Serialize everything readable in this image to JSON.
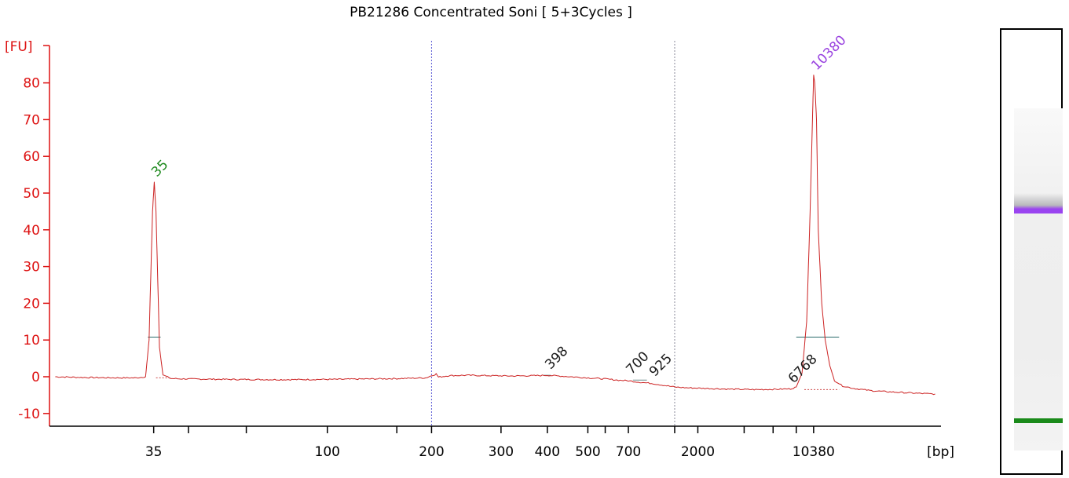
{
  "chart_data": {
    "type": "line",
    "title": "PB21286 Concentrated Soni  [ 5+3Cycles ]",
    "ylabel": "[FU]",
    "xlabel": "[bp]",
    "ylim": [
      -13,
      88
    ],
    "y_ticks": [
      80,
      70,
      60,
      50,
      40,
      30,
      20,
      10,
      0,
      -10
    ],
    "x_scale": "ladder (sizes in bp)",
    "x_tick_labels": [
      "35",
      "100",
      "200",
      "300",
      "400",
      "500",
      "700",
      "2000",
      "10380"
    ],
    "x_label_positions_s": [
      39,
      54,
      63,
      69,
      73,
      76.5,
      80,
      86,
      96
    ],
    "x_ticks_s": [
      39,
      42,
      47,
      54,
      60,
      63,
      69,
      73,
      76.5,
      78,
      80,
      84,
      86,
      90,
      92.5,
      94.5,
      96
    ],
    "dashed_lines": [
      {
        "s": 63,
        "color": "#5b5bd6"
      },
      {
        "s": 84,
        "color": "#8a8a9a"
      }
    ],
    "series": [
      {
        "color": "#cc2222",
        "points_s": [
          [
            30.5,
            0
          ],
          [
            33,
            -0.2
          ],
          [
            36,
            -0.3
          ],
          [
            37.5,
            -0.3
          ],
          [
            38.3,
            0
          ],
          [
            38.6,
            10
          ],
          [
            38.9,
            45
          ],
          [
            39.05,
            53
          ],
          [
            39.2,
            45
          ],
          [
            39.5,
            8
          ],
          [
            39.8,
            0.5
          ],
          [
            40.5,
            -0.5
          ],
          [
            42,
            -0.6
          ],
          [
            45,
            -0.7
          ],
          [
            50,
            -0.8
          ],
          [
            55,
            -0.7
          ],
          [
            60,
            -0.5
          ],
          [
            62.5,
            -0.3
          ],
          [
            63.2,
            0.5
          ],
          [
            63.4,
            0.8
          ],
          [
            63.6,
            -0.1
          ],
          [
            64.5,
            0.3
          ],
          [
            66,
            0.4
          ],
          [
            68,
            0.3
          ],
          [
            70,
            0.2
          ],
          [
            72,
            0.3
          ],
          [
            73,
            0.4
          ],
          [
            74,
            0.2
          ],
          [
            75,
            0
          ],
          [
            76,
            -0.2
          ],
          [
            78,
            -0.6
          ],
          [
            79,
            -0.9
          ],
          [
            80,
            -1.1
          ],
          [
            81,
            -1.5
          ],
          [
            82,
            -1.8
          ],
          [
            83,
            -2.3
          ],
          [
            84,
            -2.8
          ],
          [
            85,
            -3
          ],
          [
            87,
            -3.2
          ],
          [
            89,
            -3.4
          ],
          [
            91,
            -3.5
          ],
          [
            93,
            -3.4
          ],
          [
            94,
            -3.3
          ],
          [
            94.5,
            -2.8
          ],
          [
            95,
            1
          ],
          [
            95.4,
            15
          ],
          [
            95.7,
            45
          ],
          [
            95.9,
            70
          ],
          [
            96,
            82
          ],
          [
            96.1,
            80
          ],
          [
            96.25,
            70
          ],
          [
            96.4,
            40
          ],
          [
            96.7,
            20
          ],
          [
            97,
            10
          ],
          [
            97.4,
            3
          ],
          [
            97.8,
            -1
          ],
          [
            98.5,
            -2.5
          ],
          [
            99.5,
            -3.2
          ],
          [
            101,
            -3.8
          ],
          [
            103,
            -4.2
          ],
          [
            105,
            -4.5
          ],
          [
            106.5,
            -4.7
          ]
        ]
      }
    ],
    "peak_labels": [
      {
        "text": "35",
        "s": 39,
        "y": 53,
        "color": "#1f8a1f"
      },
      {
        "text": "398",
        "s": 73,
        "y": 0.6,
        "color": "#1a1a1a"
      },
      {
        "text": "700",
        "s": 80,
        "y": -0.8,
        "color": "#1a1a1a"
      },
      {
        "text": "925",
        "s": 82,
        "y": -1.4,
        "color": "#1a1a1a"
      },
      {
        "text": "6768",
        "s": 94,
        "y": -3.2,
        "color": "#1a1a1a"
      },
      {
        "text": "10380",
        "s": 96,
        "y": 82,
        "color": "#9a44e0"
      }
    ],
    "level_marks": [
      {
        "y": 10.8,
        "s1": 38.5,
        "s2": 39.6,
        "color": "#2a6a6a"
      },
      {
        "y": 10.8,
        "s1": 94.5,
        "s2": 98.2,
        "color": "#2a6a6a"
      },
      {
        "y": 0.4,
        "s1": 72.7,
        "s2": 73.3,
        "color": "#6a8a8a"
      },
      {
        "y": -0.9,
        "s1": 80.4,
        "s2": 81.6,
        "color": "#6a8a8a"
      },
      {
        "y": -3.5,
        "s1": 95.2,
        "s2": 98.2,
        "color": "#cc4444",
        "dashed": true
      },
      {
        "y": -0.3,
        "s1": 39.2,
        "s2": 40.5,
        "color": "#cc4444",
        "dashed": true
      }
    ]
  },
  "gel": {
    "bands": [
      {
        "name": "upper-marker-band",
        "color": "#9a44f0",
        "level": 0.706
      },
      {
        "name": "lower-marker-band",
        "color": "#1a8a1a",
        "level": 0.088
      }
    ]
  },
  "colors": {
    "axis": "#dd1111",
    "trace": "#cc2222"
  }
}
